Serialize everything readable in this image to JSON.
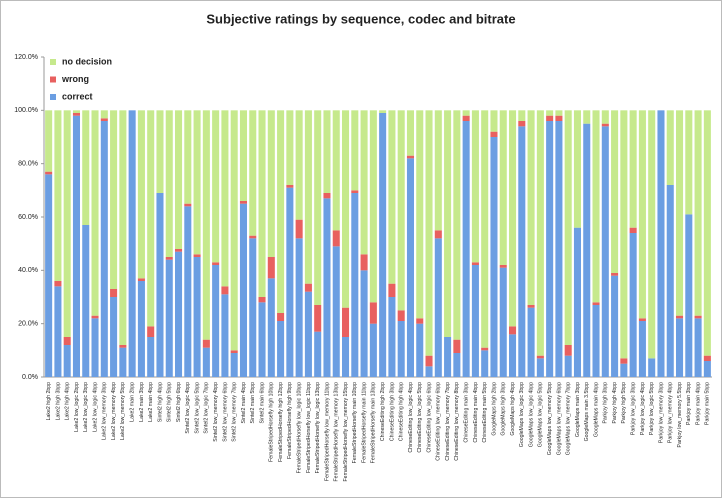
{
  "chart_data": {
    "type": "stacked_bar",
    "title": "Subjective ratings by sequence, codec and bitrate",
    "categories": [
      "Lake2 high 2bpp",
      "Lake2 high 3bpp",
      "Lake2 high 4bpp",
      "Lake2 low_logic 2bpp",
      "Lake2 low_logic 3bpp",
      "Lake2 low_logic 4bpp",
      "Lake2 low_memory 3bpp",
      "Lake2 low_memory 4bpp",
      "Lake2 low_memory 5bpp",
      "Lake2 main 2bpp",
      "Lake2 main 3bpp",
      "Lake2 main 4bpp",
      "Sintel2 high 4bpp",
      "Sintel2 high 5bpp",
      "Sintel2 high 6bpp",
      "Sintel2 low_logic 4bpp",
      "Sintel2 low_logic 5bpp",
      "Sintel2 low_logic 7bpp",
      "Sintel2 low_memory 4bpp",
      "Sintel2 low_memory 6bpp",
      "Sintel2 low_memory 7bpp",
      "Sintel2 main 4bpp",
      "Sintel2 main 5bpp",
      "Sintel2 main 6bpp",
      "FemaleStripedHorsefly high 10bpp",
      "FemaleStripedHorsefly high 12bpp",
      "FemaleStripedHorsefly high 9bpp",
      "FemaleStripedHorsefly low_logic 10bpp",
      "FemaleStripedHorsefly low_logic 11bpp",
      "FemaleStripedHorsefly low_logic 13bpp",
      "FemaleStripedHorsefly low_memory 11bpp",
      "FemaleStripedHorsefly low_memory 13bpp",
      "FemaleStripedHorsefly low_memory 15bpp",
      "FemaleStripedHorsefly main 10bpp",
      "FemaleStripedHorsefly main 11bpp",
      "FemaleStripedHorsefly main 13bpp",
      "ChineseEditing high 2bpp",
      "ChineseEditing high 3bpp",
      "ChineseEditing high 4bpp",
      "ChineseEditing low_logic 4bpp",
      "ChineseEditing low_logic 5bpp",
      "ChineseEditing low_logic 6bpp",
      "ChineseEditing low_memory 6bpp",
      "ChineseEditing low_memory 7bpp",
      "ChineseEditing low_memory 8bpp",
      "ChineseEditing main 3bpp",
      "ChineseEditing main 4bpp",
      "ChineseEditing main 5bpp",
      "GoogleMaps high 2bpp",
      "GoogleMaps high 3bpp",
      "GoogleMaps high 4bpp",
      "GoogleMaps low_logic 3bpp",
      "GoogleMaps low_logic 4bpp",
      "GoogleMaps low_logic 5bpp",
      "GoogleMaps low_memory 5bpp",
      "GoogleMaps low_memory 6bpp",
      "GoogleMaps low_memory 7bpp",
      "GoogleMaps main 3bpp",
      "GoogleMaps main 3.5bpp",
      "GoogleMaps main 4bpp",
      "Parkjoy high 3bpp",
      "Parkjoy high 4bpp",
      "Parkjoy high 5bpp",
      "Parkjoy low_logic 3bpp",
      "Parkjoy low_logic 4bpp",
      "Parkjoy low_logic 5bpp",
      "Parkjoy low_memory 3bpp",
      "Parkjoy low_memory 4bpp",
      "Parkjoy low_memory 5.5bpp",
      "Parkjoy main 3bpp",
      "Parkjoy main 4bpp",
      "Parkjoy main 5bpp"
    ],
    "series": [
      {
        "name": "correct",
        "color": "#6b9ee2",
        "values": [
          76,
          34,
          12,
          98,
          57,
          22,
          96,
          30,
          11,
          100,
          36,
          15,
          69,
          44,
          47,
          64,
          45,
          11,
          42,
          31,
          9,
          65,
          52,
          28,
          37,
          21,
          71,
          52,
          32,
          17,
          67,
          49,
          15,
          69,
          40,
          20,
          99,
          30,
          21,
          82,
          20,
          4,
          52,
          15,
          9,
          96,
          42,
          10,
          90,
          41,
          16,
          94,
          26,
          7,
          96,
          96,
          8,
          56,
          95,
          27,
          94,
          38,
          5,
          54,
          21,
          7,
          100,
          72,
          22,
          61,
          22,
          6
        ]
      },
      {
        "name": "wrong",
        "color": "#e8605f",
        "values": [
          1,
          2,
          3,
          1,
          0,
          1,
          1,
          3,
          1,
          0,
          1,
          4,
          0,
          1,
          1,
          1,
          1,
          3,
          1,
          3,
          1,
          1,
          1,
          2,
          8,
          3,
          1,
          7,
          3,
          10,
          2,
          6,
          11,
          1,
          6,
          8,
          0,
          5,
          4,
          1,
          2,
          4,
          3,
          0,
          5,
          2,
          1,
          1,
          2,
          1,
          3,
          2,
          1,
          1,
          2,
          2,
          4,
          0,
          0,
          1,
          1,
          1,
          2,
          2,
          1,
          0,
          0,
          0,
          1,
          0,
          1,
          2
        ]
      },
      {
        "name": "no decision",
        "color": "#c6e98c",
        "values": [
          23,
          64,
          85,
          1,
          43,
          77,
          3,
          67,
          88,
          0,
          63,
          81,
          31,
          55,
          52,
          35,
          54,
          86,
          57,
          66,
          90,
          34,
          47,
          70,
          55,
          76,
          28,
          41,
          65,
          73,
          31,
          45,
          74,
          30,
          54,
          72,
          1,
          65,
          75,
          17,
          78,
          92,
          45,
          85,
          86,
          2,
          57,
          89,
          8,
          58,
          81,
          4,
          73,
          92,
          2,
          2,
          88,
          44,
          5,
          72,
          5,
          61,
          93,
          44,
          78,
          93,
          0,
          28,
          77,
          39,
          77,
          92
        ]
      }
    ],
    "ylim": [
      0,
      120
    ],
    "yticks": [
      {
        "value": 0,
        "label": "0.0%"
      },
      {
        "value": 20,
        "label": "20.0%"
      },
      {
        "value": 40,
        "label": "40.0%"
      },
      {
        "value": 60,
        "label": "60.0%"
      },
      {
        "value": 80,
        "label": "80.0%"
      },
      {
        "value": 100,
        "label": "100.0%"
      },
      {
        "value": 120,
        "label": "120.0%"
      }
    ],
    "legend": "top-left"
  }
}
